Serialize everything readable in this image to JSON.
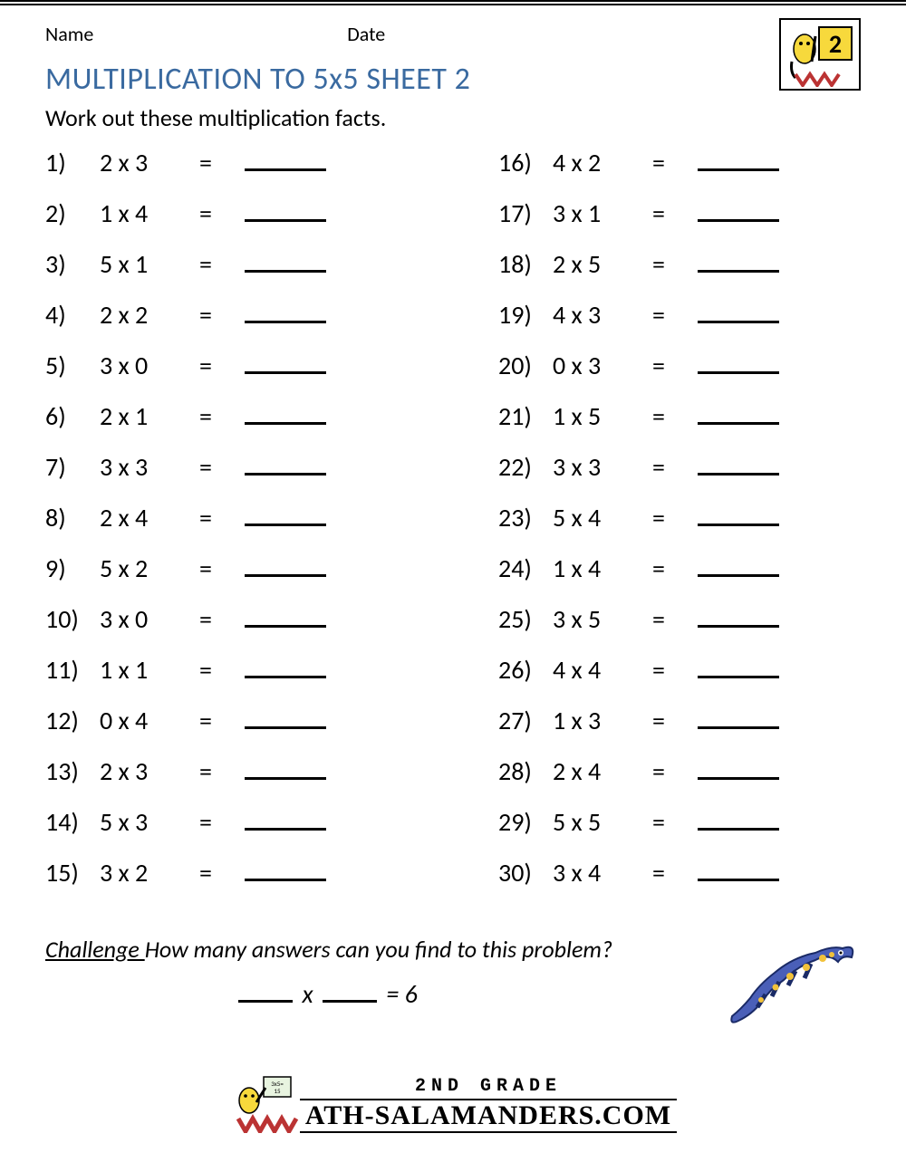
{
  "header": {
    "name_label": "Name",
    "date_label": "Date",
    "grade_number": "2"
  },
  "title": "MULTIPLICATION TO 5x5 SHEET 2",
  "instructions": "Work out these multiplication facts.",
  "colors": {
    "title_color": "#3a6aa0",
    "text_color": "#000000",
    "badge_yellow": "#f7d93c",
    "salamander_blue": "#4a5fb8",
    "salamander_spot": "#f2c23a",
    "background": "#ffffff"
  },
  "typography": {
    "title_fontsize": 34,
    "body_fontsize": 26,
    "problem_fontsize": 28
  },
  "problems_left": [
    {
      "n": "1)",
      "expr": "2 x 3"
    },
    {
      "n": "2)",
      "expr": "1 x 4"
    },
    {
      "n": "3)",
      "expr": "5 x 1"
    },
    {
      "n": "4)",
      "expr": "2 x 2"
    },
    {
      "n": "5)",
      "expr": "3 x 0"
    },
    {
      "n": "6)",
      "expr": "2 x 1"
    },
    {
      "n": "7)",
      "expr": "3 x 3"
    },
    {
      "n": "8)",
      "expr": "2 x 4"
    },
    {
      "n": "9)",
      "expr": "5 x 2"
    },
    {
      "n": "10)",
      "expr": "3 x 0"
    },
    {
      "n": "11)",
      "expr": "1 x 1"
    },
    {
      "n": "12)",
      "expr": "0 x 4"
    },
    {
      "n": "13)",
      "expr": "2 x 3"
    },
    {
      "n": "14)",
      "expr": "5 x 3"
    },
    {
      "n": "15)",
      "expr": "3 x 2"
    }
  ],
  "problems_right": [
    {
      "n": "16)",
      "expr": "4 x 2"
    },
    {
      "n": "17)",
      "expr": "3 x 1"
    },
    {
      "n": "18)",
      "expr": "2 x 5"
    },
    {
      "n": "19)",
      "expr": "4 x 3"
    },
    {
      "n": "20)",
      "expr": "0 x 3"
    },
    {
      "n": "21)",
      "expr": "1 x 5"
    },
    {
      "n": "22)",
      "expr": "3 x 3"
    },
    {
      "n": "23)",
      "expr": "5 x 4"
    },
    {
      "n": "24)",
      "expr": "1 x 4"
    },
    {
      "n": "25)",
      "expr": "3 x 5"
    },
    {
      "n": "26)",
      "expr": "4 x 4"
    },
    {
      "n": "27)",
      "expr": "1 x 3"
    },
    {
      "n": "28)",
      "expr": "2 x 4"
    },
    {
      "n": "29)",
      "expr": "5 x 5"
    },
    {
      "n": "30)",
      "expr": "3 x 4"
    }
  ],
  "equals": "=",
  "challenge": {
    "label": "Challenge ",
    "question": "How many answers can you find to this problem?",
    "equation_x": "x",
    "equation_eq": "= 6"
  },
  "footer": {
    "line1": "2ND GRADE",
    "line2": "ATH-SALAMANDERS.COM"
  }
}
